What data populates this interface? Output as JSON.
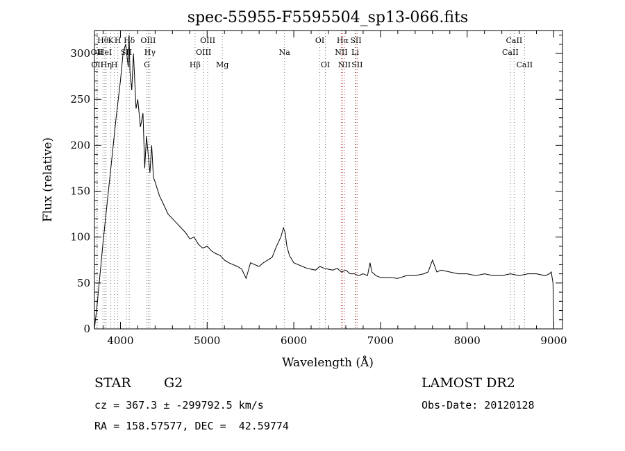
{
  "chart_data": {
    "type": "line",
    "title": "spec-55955-F5595504_sp13-066.fits",
    "xlabel": "Wavelength (Å)",
    "ylabel": "Flux (relative)",
    "xlim": [
      3700,
      9100
    ],
    "ylim": [
      0,
      325
    ],
    "xticks": [
      4000,
      5000,
      6000,
      7000,
      8000,
      9000
    ],
    "yticks": [
      0,
      50,
      100,
      150,
      200,
      250,
      300
    ],
    "grid": false,
    "series": [
      {
        "x": [
          3700,
          3730,
          3760,
          3800,
          3850,
          3900,
          3950,
          4000,
          4030,
          4060,
          4090,
          4100,
          4110,
          4130,
          4150,
          4180,
          4200,
          4230,
          4260,
          4280,
          4300,
          4320,
          4340,
          4360,
          4380,
          4400,
          4450,
          4500,
          4550,
          4600,
          4650,
          4700,
          4750,
          4800,
          4850,
          4900,
          4950,
          5000,
          5050,
          5100,
          5150,
          5200,
          5250,
          5300,
          5350,
          5400,
          5450,
          5500,
          5550,
          5600,
          5650,
          5700,
          5750,
          5800,
          5850,
          5880,
          5900,
          5920,
          5950,
          6000,
          6050,
          6100,
          6150,
          6200,
          6250,
          6300,
          6350,
          6400,
          6450,
          6500,
          6550,
          6600,
          6650,
          6700,
          6750,
          6800,
          6850,
          6880,
          6900,
          6950,
          7000,
          7100,
          7200,
          7300,
          7400,
          7500,
          7550,
          7600,
          7650,
          7700,
          7800,
          7900,
          8000,
          8100,
          8200,
          8300,
          8400,
          8500,
          8600,
          8700,
          8800,
          8900,
          8950,
          8970,
          8990,
          9000
        ],
        "y": [
          0,
          25,
          55,
          95,
          140,
          185,
          230,
          270,
          300,
          310,
          285,
          320,
          280,
          260,
          300,
          240,
          250,
          220,
          235,
          175,
          210,
          190,
          170,
          200,
          165,
          160,
          145,
          135,
          125,
          120,
          115,
          110,
          105,
          98,
          100,
          92,
          88,
          90,
          85,
          82,
          80,
          75,
          72,
          70,
          68,
          65,
          55,
          72,
          70,
          68,
          72,
          75,
          78,
          90,
          100,
          110,
          105,
          90,
          80,
          72,
          70,
          68,
          66,
          65,
          64,
          68,
          66,
          65,
          64,
          66,
          62,
          64,
          60,
          60,
          58,
          60,
          58,
          72,
          62,
          58,
          56,
          56,
          55,
          58,
          58,
          60,
          62,
          75,
          62,
          64,
          62,
          60,
          60,
          58,
          60,
          58,
          58,
          60,
          58,
          60,
          60,
          58,
          60,
          62,
          50,
          0
        ]
      }
    ],
    "line_markers": [
      {
        "wl": 3798,
        "label": "Hθ",
        "row": 0
      },
      {
        "wl": 3889,
        "label": "K",
        "row": 0
      },
      {
        "wl": 3970,
        "label": "H",
        "row": 0
      },
      {
        "wl": 4102,
        "label": "Hδ",
        "row": 0
      },
      {
        "wl": 4320,
        "label": "OIII",
        "row": 0
      },
      {
        "wl": 5007,
        "label": "OIII",
        "row": 0
      },
      {
        "wl": 6300,
        "label": "OI",
        "row": 0
      },
      {
        "wl": 6563,
        "label": "Hα",
        "row": 0
      },
      {
        "wl": 6716,
        "label": "SII",
        "row": 0
      },
      {
        "wl": 8542,
        "label": "CaII",
        "row": 0
      },
      {
        "wl": 3727,
        "label": "OII",
        "row": 1
      },
      {
        "wl": 3820,
        "label": "HeI",
        "row": 1
      },
      {
        "wl": 4068,
        "label": "SII",
        "row": 1
      },
      {
        "wl": 4340,
        "label": "Hγ",
        "row": 1
      },
      {
        "wl": 4959,
        "label": "OIII",
        "row": 1
      },
      {
        "wl": 5893,
        "label": "Na",
        "row": 1
      },
      {
        "wl": 6548,
        "label": "NII",
        "row": 1
      },
      {
        "wl": 6708,
        "label": "Li",
        "row": 1
      },
      {
        "wl": 8498,
        "label": "CaII",
        "row": 1
      },
      {
        "wl": 3733,
        "label": "OII",
        "row": 2
      },
      {
        "wl": 3835,
        "label": "Hη",
        "row": 2
      },
      {
        "wl": 3930,
        "label": "H",
        "row": 2
      },
      {
        "wl": 4305,
        "label": "G",
        "row": 2
      },
      {
        "wl": 4861,
        "label": "Hβ",
        "row": 2
      },
      {
        "wl": 5175,
        "label": "Mg",
        "row": 2
      },
      {
        "wl": 6364,
        "label": "OI",
        "row": 2
      },
      {
        "wl": 6584,
        "label": "NII",
        "row": 2
      },
      {
        "wl": 6731,
        "label": "SII",
        "row": 2
      },
      {
        "wl": 8662,
        "label": "CaII",
        "row": 2
      }
    ]
  },
  "info": {
    "object_class": "STAR",
    "subclass": "G2",
    "survey": "LAMOST DR2",
    "velocity": "cz = 367.3 ± -299792.5 km/s",
    "obs_date": "Obs-Date: 20120128",
    "coords": "RA = 158.57577, DEC =  42.59774"
  }
}
